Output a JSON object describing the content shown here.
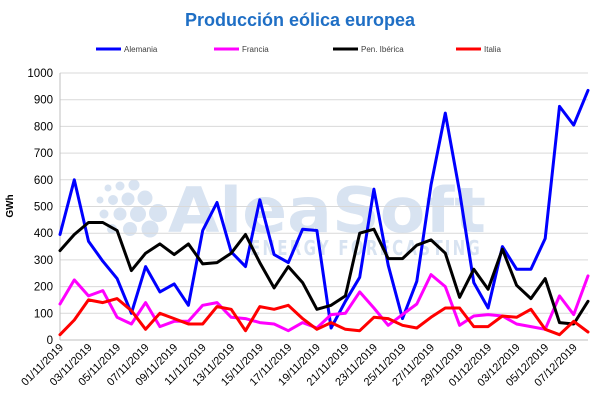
{
  "chart_data": {
    "type": "line",
    "title": "Producción eólica europea",
    "ylabel": "GWh",
    "xlabel": "",
    "ylim": [
      0,
      1000
    ],
    "yticks": [
      0,
      100,
      200,
      300,
      400,
      500,
      600,
      700,
      800,
      900,
      1000
    ],
    "grid": true,
    "legend_position": "top",
    "x": [
      "01/11/2019",
      "02/11/2019",
      "03/11/2019",
      "04/11/2019",
      "05/11/2019",
      "06/11/2019",
      "07/11/2019",
      "08/11/2019",
      "09/11/2019",
      "10/11/2019",
      "11/11/2019",
      "12/11/2019",
      "13/11/2019",
      "14/11/2019",
      "15/11/2019",
      "16/11/2019",
      "17/11/2019",
      "18/11/2019",
      "19/11/2019",
      "20/11/2019",
      "21/11/2019",
      "22/11/2019",
      "23/11/2019",
      "24/11/2019",
      "25/11/2019",
      "26/11/2019",
      "27/11/2019",
      "28/11/2019",
      "29/11/2019",
      "30/11/2019",
      "01/12/2019",
      "02/12/2019",
      "03/12/2019",
      "04/12/2019",
      "05/12/2019",
      "06/12/2019",
      "07/12/2019",
      "08/12/2019"
    ],
    "xtick_labels": [
      "01/11/2019",
      "03/11/2019",
      "05/11/2019",
      "07/11/2019",
      "09/11/2019",
      "11/11/2019",
      "13/11/2019",
      "15/11/2019",
      "17/11/2019",
      "19/11/2019",
      "21/11/2019",
      "23/11/2019",
      "25/11/2019",
      "27/11/2019",
      "29/11/2019",
      "01/12/2019",
      "03/12/2019",
      "05/12/2019",
      "07/12/2019"
    ],
    "series": [
      {
        "name": "Alemania",
        "color": "#0000ff",
        "values": [
          395,
          600,
          370,
          295,
          230,
          100,
          275,
          180,
          210,
          130,
          410,
          515,
          330,
          275,
          525,
          320,
          290,
          415,
          410,
          45,
          145,
          235,
          565,
          280,
          80,
          220,
          580,
          850,
          555,
          215,
          120,
          350,
          265,
          265,
          380,
          875,
          805,
          935
        ]
      },
      {
        "name": "Francia",
        "color": "#ff00ff",
        "values": [
          135,
          225,
          165,
          185,
          85,
          60,
          140,
          50,
          70,
          70,
          130,
          140,
          85,
          80,
          65,
          60,
          35,
          65,
          45,
          95,
          100,
          180,
          120,
          55,
          95,
          135,
          245,
          200,
          55,
          90,
          95,
          90,
          60,
          50,
          40,
          165,
          95,
          240
        ]
      },
      {
        "name": "Pen. Ibérica",
        "color": "#000000",
        "values": [
          335,
          395,
          440,
          440,
          410,
          260,
          325,
          360,
          320,
          360,
          285,
          290,
          325,
          395,
          290,
          195,
          275,
          215,
          115,
          130,
          165,
          400,
          415,
          305,
          305,
          355,
          375,
          325,
          160,
          265,
          190,
          340,
          205,
          155,
          230,
          65,
          60,
          145
        ]
      },
      {
        "name": "Italia",
        "color": "#ff0000",
        "values": [
          20,
          75,
          150,
          140,
          155,
          110,
          40,
          100,
          80,
          60,
          60,
          125,
          115,
          35,
          125,
          115,
          130,
          80,
          40,
          65,
          40,
          35,
          85,
          80,
          55,
          45,
          85,
          120,
          120,
          50,
          50,
          90,
          85,
          115,
          40,
          20,
          70,
          30
        ]
      }
    ]
  },
  "watermark": {
    "name": "AleaSoft",
    "tagline": "ENERGY FORECASTING",
    "color": "#d8e3f1"
  }
}
